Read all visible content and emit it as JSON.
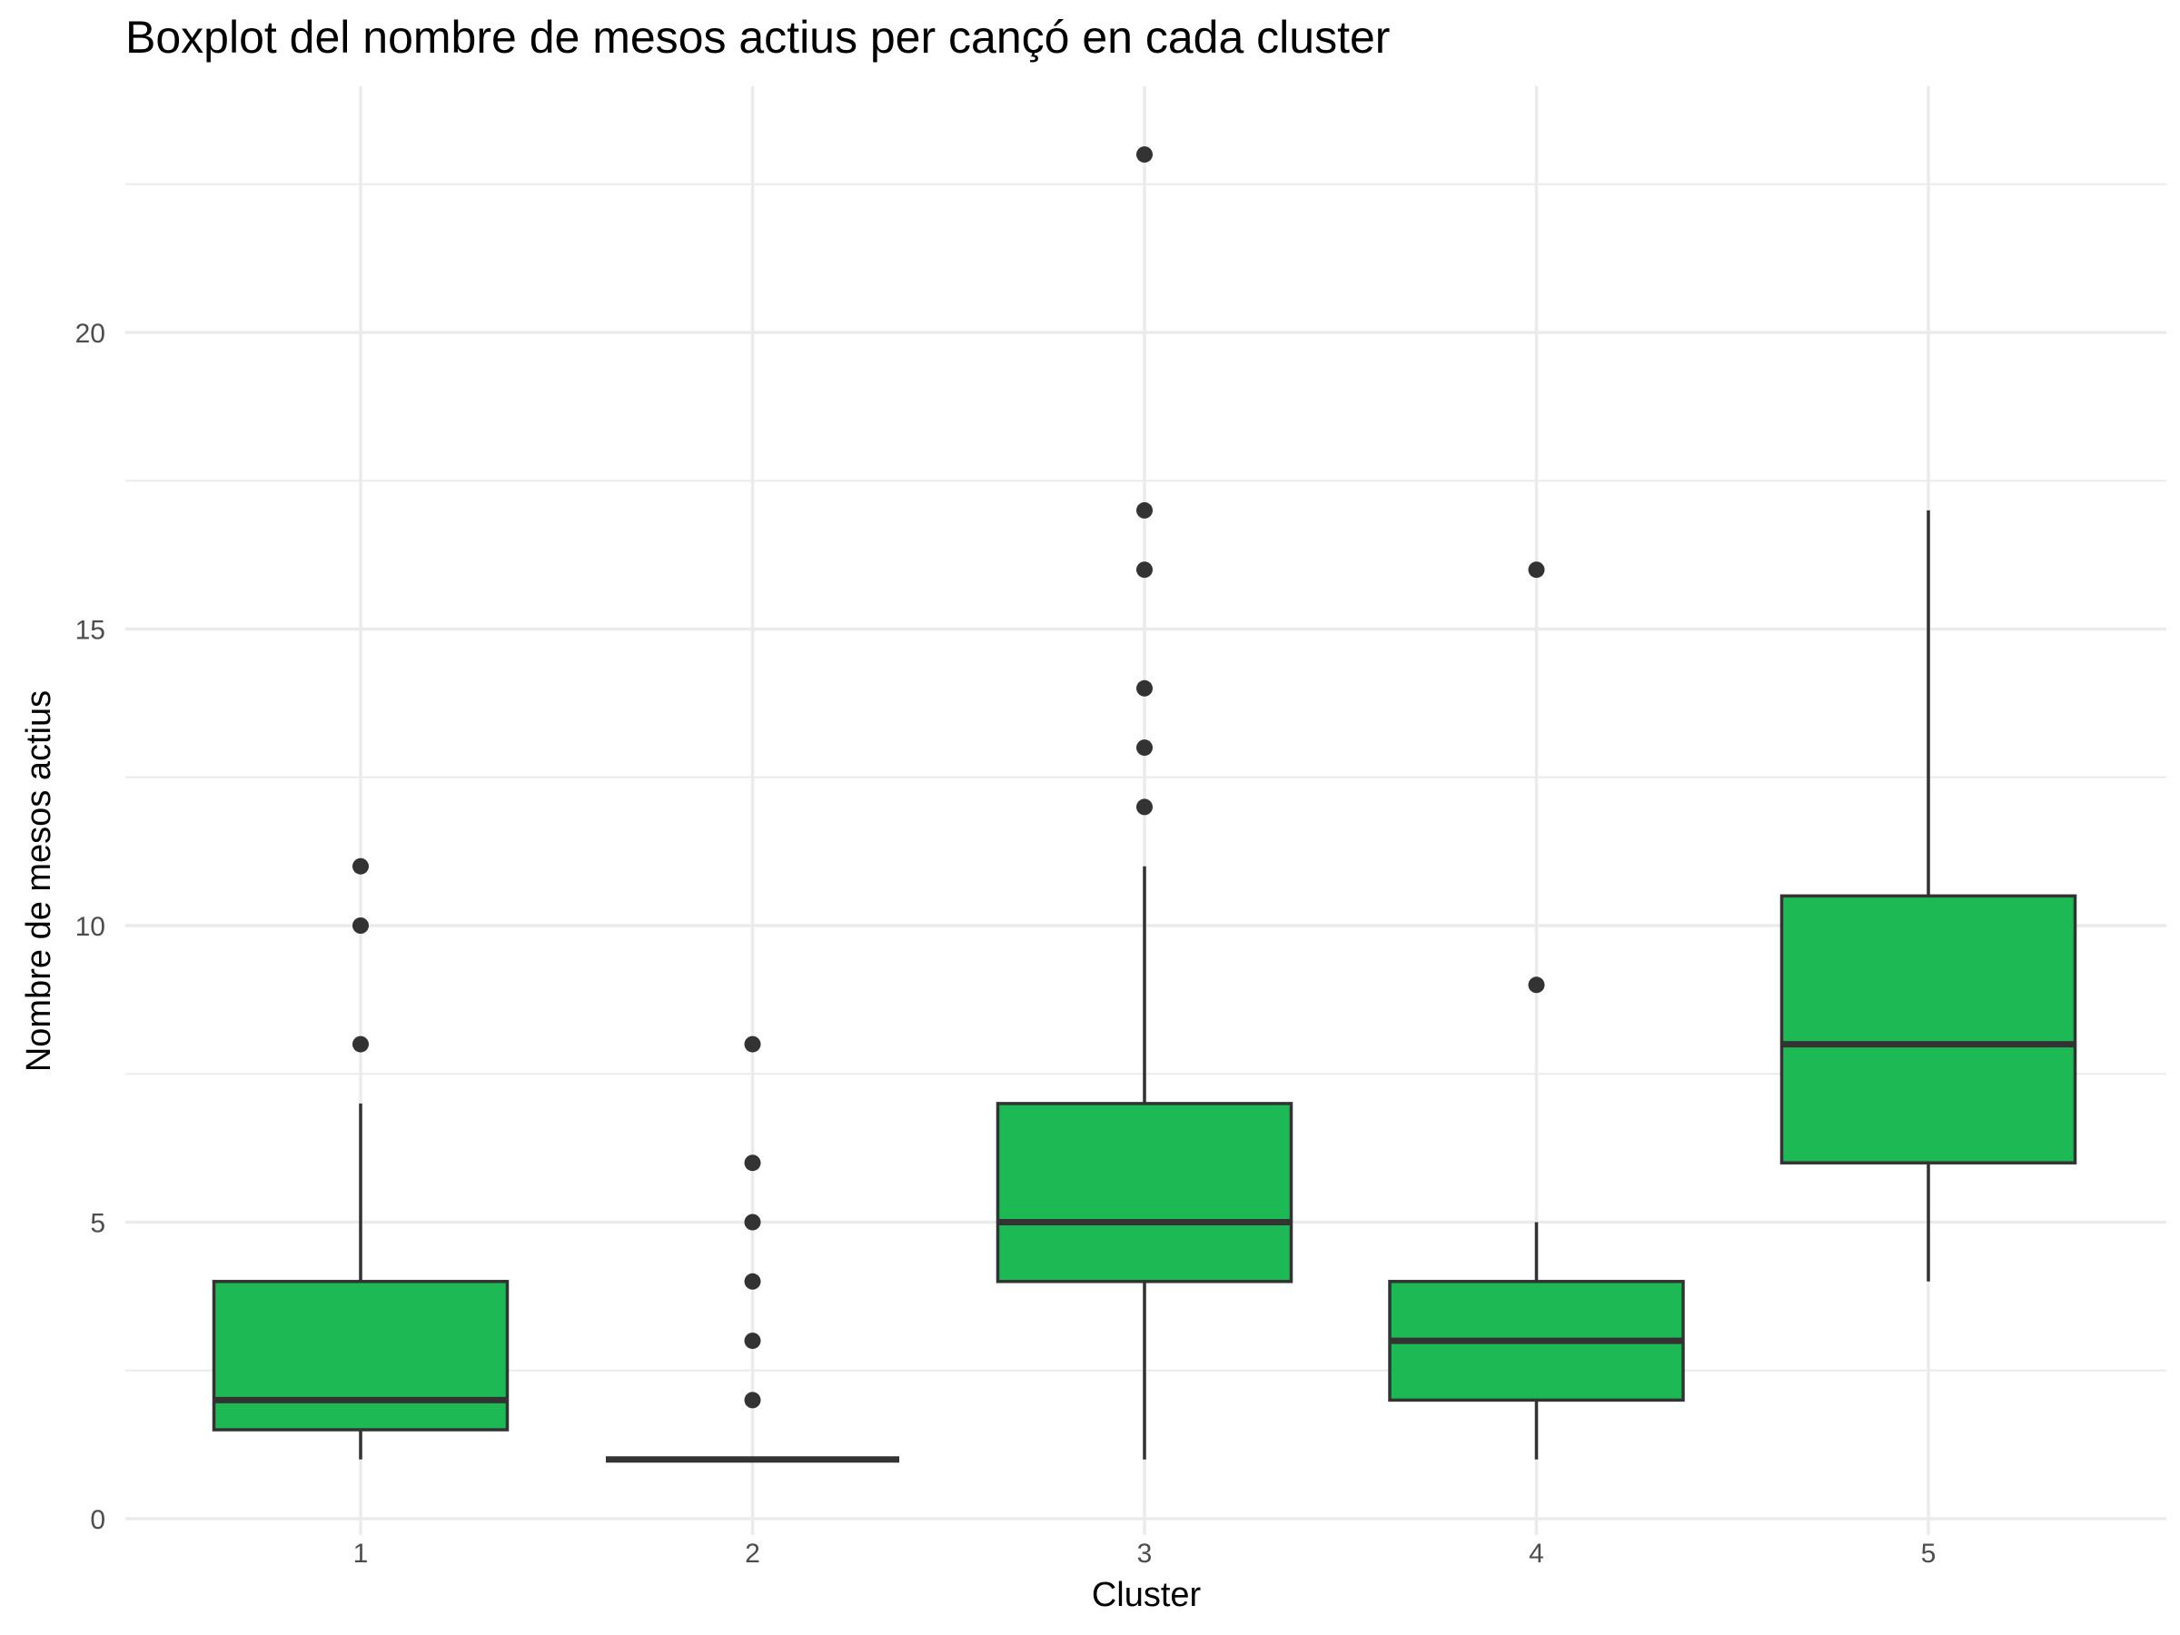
{
  "chart_data": {
    "type": "boxplot",
    "title": "Boxplot del nombre de mesos actius per cançó en cada cluster",
    "xlabel": "Cluster",
    "ylabel": "Nombre de mesos actius",
    "categories": [
      "1",
      "2",
      "3",
      "4",
      "5"
    ],
    "ylim": [
      0,
      24
    ],
    "yticks": [
      0,
      5,
      10,
      15,
      20
    ],
    "grid": true,
    "legend": "none",
    "colors": {
      "box_fill": "#1db954",
      "box_stroke": "#333333",
      "grid": "#ebebeb",
      "point": "#333333"
    },
    "boxes": [
      {
        "category": "1",
        "whisker_low": 1,
        "q1": 1.5,
        "median": 2,
        "q3": 4,
        "whisker_high": 7,
        "outliers": [
          8,
          10,
          11
        ]
      },
      {
        "category": "2",
        "whisker_low": 1,
        "q1": 1,
        "median": 1,
        "q3": 1,
        "whisker_high": 1,
        "outliers": [
          2,
          3,
          4,
          5,
          6,
          8
        ]
      },
      {
        "category": "3",
        "whisker_low": 1,
        "q1": 4,
        "median": 5,
        "q3": 7,
        "whisker_high": 11,
        "outliers": [
          12,
          13,
          14,
          16,
          17,
          23
        ]
      },
      {
        "category": "4",
        "whisker_low": 1,
        "q1": 2,
        "median": 3,
        "q3": 4,
        "whisker_high": 5,
        "outliers": [
          9,
          16
        ]
      },
      {
        "category": "5",
        "whisker_low": 4,
        "q1": 6,
        "median": 8,
        "q3": 10.5,
        "whisker_high": 17,
        "outliers": []
      }
    ]
  }
}
